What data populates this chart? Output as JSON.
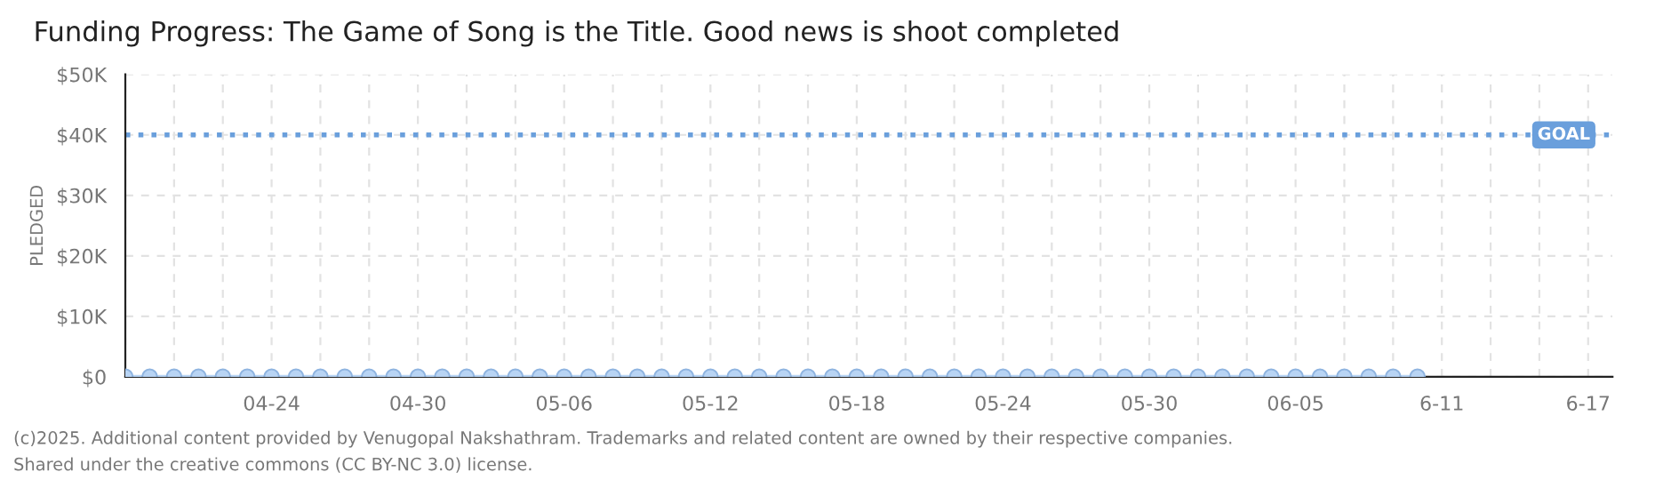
{
  "chart_data": {
    "type": "line",
    "title": "Funding Progress: The Game of Song is the Title. Good news is shoot completed",
    "ylabel": "PLEDGED",
    "x": [
      "2025-04-18",
      "2025-04-19",
      "2025-04-20",
      "2025-04-21",
      "2025-04-22",
      "2025-04-23",
      "2025-04-24",
      "2025-04-25",
      "2025-04-26",
      "2025-04-27",
      "2025-04-28",
      "2025-04-29",
      "2025-04-30",
      "2025-05-01",
      "2025-05-02",
      "2025-05-03",
      "2025-05-04",
      "2025-05-05",
      "2025-05-06",
      "2025-05-07",
      "2025-05-08",
      "2025-05-09",
      "2025-05-10",
      "2025-05-11",
      "2025-05-12",
      "2025-05-13",
      "2025-05-14",
      "2025-05-15",
      "2025-05-16",
      "2025-05-17",
      "2025-05-18",
      "2025-05-19",
      "2025-05-20",
      "2025-05-21",
      "2025-05-22",
      "2025-05-23",
      "2025-05-24",
      "2025-05-25",
      "2025-05-26",
      "2025-05-27",
      "2025-05-28",
      "2025-05-29",
      "2025-05-30",
      "2025-05-31",
      "2025-06-01",
      "2025-06-02",
      "2025-06-03",
      "2025-06-04",
      "2025-06-05",
      "2025-06-06",
      "2025-06-07",
      "2025-06-08",
      "2025-06-09",
      "2025-06-10"
    ],
    "series": [
      {
        "color": "#b8d4f4",
        "values": [
          0,
          0,
          0,
          0,
          0,
          0,
          0,
          0,
          0,
          0,
          0,
          0,
          0,
          0,
          0,
          0,
          0,
          0,
          0,
          0,
          0,
          0,
          0,
          0,
          0,
          0,
          0,
          0,
          0,
          0,
          0,
          0,
          0,
          0,
          0,
          0,
          0,
          0,
          0,
          0,
          0,
          0,
          0,
          0,
          0,
          0,
          0,
          0,
          0,
          0,
          0,
          0,
          0,
          0
        ]
      }
    ],
    "marker": "circle",
    "xlim": [
      "2025-04-18",
      "2025-06-18"
    ],
    "xticks": [
      {
        "value": "2025-04-18",
        "label": null
      },
      {
        "value": "2025-04-20",
        "label": null
      },
      {
        "value": "2025-04-22",
        "label": null
      },
      {
        "value": "2025-04-24",
        "label": "04-24"
      },
      {
        "value": "2025-04-26",
        "label": null
      },
      {
        "value": "2025-04-28",
        "label": null
      },
      {
        "value": "2025-04-30",
        "label": "04-30"
      },
      {
        "value": "2025-05-02",
        "label": null
      },
      {
        "value": "2025-05-04",
        "label": null
      },
      {
        "value": "2025-05-06",
        "label": "05-06"
      },
      {
        "value": "2025-05-08",
        "label": null
      },
      {
        "value": "2025-05-10",
        "label": null
      },
      {
        "value": "2025-05-12",
        "label": "05-12"
      },
      {
        "value": "2025-05-14",
        "label": null
      },
      {
        "value": "2025-05-16",
        "label": null
      },
      {
        "value": "2025-05-18",
        "label": "05-18"
      },
      {
        "value": "2025-05-20",
        "label": null
      },
      {
        "value": "2025-05-22",
        "label": null
      },
      {
        "value": "2025-05-24",
        "label": "05-24"
      },
      {
        "value": "2025-05-26",
        "label": null
      },
      {
        "value": "2025-05-28",
        "label": null
      },
      {
        "value": "2025-05-30",
        "label": "05-30"
      },
      {
        "value": "2025-06-01",
        "label": null
      },
      {
        "value": "2025-06-03",
        "label": null
      },
      {
        "value": "2025-06-05",
        "label": "06-05"
      },
      {
        "value": "2025-06-07",
        "label": null
      },
      {
        "value": "2025-06-09",
        "label": null
      },
      {
        "value": "2025-06-11",
        "label": "6-11"
      },
      {
        "value": "2025-06-13",
        "label": null
      },
      {
        "value": "2025-06-15",
        "label": null
      },
      {
        "value": "2025-06-17",
        "label": "6-17"
      }
    ],
    "ylim": [
      0,
      50000
    ],
    "yticks": [
      {
        "value": 0,
        "label": "$0"
      },
      {
        "value": 10000,
        "label": "$10K"
      },
      {
        "value": 20000,
        "label": "$20K"
      },
      {
        "value": 30000,
        "label": "$30K"
      },
      {
        "value": 40000,
        "label": "$40K"
      },
      {
        "value": 50000,
        "label": "$50K"
      }
    ],
    "ref_lines": [
      {
        "axis": "y",
        "value": 40000,
        "label": "GOAL",
        "color": "#6a9fdc",
        "line_style": "dotted"
      }
    ],
    "grid": true,
    "annotations": [
      "(c)2025. Additional content provided by Venugopal Nakshathram. Trademarks and related content are owned by their respective companies.",
      "Shared under the creative commons (CC BY-NC 3.0) license."
    ]
  }
}
